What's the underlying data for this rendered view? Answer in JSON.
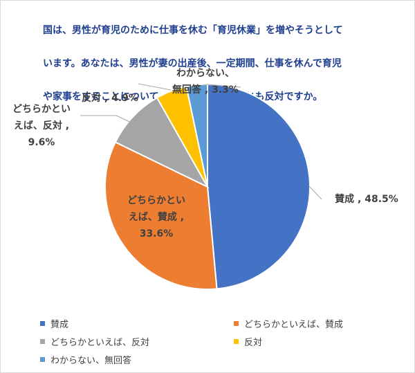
{
  "question_text": "国は、男性が育児のために仕事を休む「育児休業」を増やそうとしています。あなたは、男性が妻の出産後、一定期間、仕事を休んで育児や家事をすることについて、賛成ですか。それとも反対ですか。",
  "question_lines": [
    "国は、男性が育児のために仕事を休む「育児休業」を増やそうとして",
    "います。あなたは、男性が妻の出産後、一定期間、仕事を休んで育児",
    "や家事をすることについて、賛成ですか。それとも反対ですか。"
  ],
  "chart_data": {
    "type": "pie",
    "title": "",
    "categories": [
      "賛成",
      "どちらかといえば、賛成",
      "どちらかといえば、反対",
      "反対",
      "わからない、無回答"
    ],
    "values": [
      48.5,
      33.6,
      9.6,
      4.9,
      3.3
    ],
    "unit": "%",
    "colors": [
      "#4472c4",
      "#ed7d31",
      "#a5a5a5",
      "#ffc000",
      "#5b9bd5"
    ],
    "slice_labels": [
      [
        "賛成 , 48.5%"
      ],
      [
        "どちらかとい",
        "えば、賛成 ,",
        "33.6%"
      ],
      [
        "どちらかとい",
        "えば、反対 ,",
        "9.6%"
      ],
      [
        "反対 , 4.9%"
      ],
      [
        "わからない、",
        "無回答 , 3.3%"
      ]
    ],
    "start_angle_deg": 0,
    "direction": "clockwise",
    "legend_position": "bottom"
  }
}
